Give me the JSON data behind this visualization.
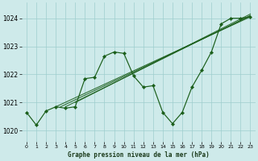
{
  "title": "Graphe pression niveau de la mer (hPa)",
  "bg_color": "#ceeaea",
  "grid_color": "#9ecece",
  "line_color": "#1a5e1a",
  "marker_color": "#1a5e1a",
  "xlim": [
    -0.5,
    23.5
  ],
  "ylim": [
    1019.6,
    1024.55
  ],
  "yticks": [
    1020,
    1021,
    1022,
    1023,
    1024
  ],
  "xticks": [
    0,
    1,
    2,
    3,
    4,
    5,
    6,
    7,
    8,
    9,
    10,
    11,
    12,
    13,
    14,
    15,
    16,
    17,
    18,
    19,
    20,
    21,
    22,
    23
  ],
  "straight_lines": [
    {
      "x0": 3.0,
      "y0": 1020.85,
      "x1": 23.0,
      "y1": 1024.05
    },
    {
      "x0": 3.5,
      "y0": 1020.85,
      "x1": 23.0,
      "y1": 1024.08
    },
    {
      "x0": 4.0,
      "y0": 1020.85,
      "x1": 23.0,
      "y1": 1024.1
    },
    {
      "x0": 5.0,
      "y0": 1021.0,
      "x1": 23.0,
      "y1": 1024.15
    }
  ],
  "zigzag_x": [
    0,
    1,
    2,
    3,
    4,
    5,
    6,
    7,
    8,
    9,
    10,
    11,
    12,
    13,
    14,
    15,
    16,
    17,
    18,
    19,
    20,
    21,
    22,
    23
  ],
  "zigzag_y": [
    1020.65,
    1020.2,
    1020.7,
    1020.85,
    1020.8,
    1020.85,
    1021.85,
    1021.9,
    1022.65,
    1022.8,
    1022.75,
    1021.95,
    1021.55,
    1021.6,
    1020.65,
    1020.25,
    1020.65,
    1021.55,
    1022.15,
    1022.8,
    1023.8,
    1024.0,
    1024.0,
    1024.05
  ]
}
